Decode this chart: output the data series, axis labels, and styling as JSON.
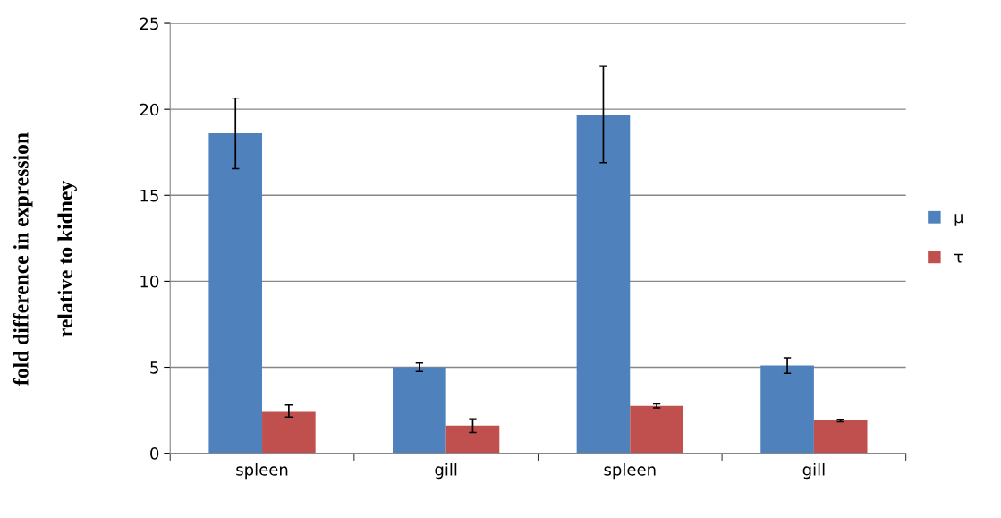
{
  "chart_data": {
    "type": "bar",
    "ylabel": "fold difference in expression\n\nrelative to kidney",
    "categories": [
      "spleen",
      "gill",
      "spleen",
      "gill"
    ],
    "series": [
      {
        "name": "μ",
        "color": "#4f81bd",
        "values": [
          18.6,
          5.0,
          19.7,
          5.1
        ],
        "errors": [
          2.05,
          0.25,
          2.8,
          0.45
        ]
      },
      {
        "name": "τ",
        "color": "#c0504d",
        "values": [
          2.45,
          1.6,
          2.75,
          1.9
        ],
        "errors": [
          0.35,
          0.4,
          0.12,
          0.07
        ]
      }
    ],
    "ylim": [
      0,
      25
    ],
    "yticks": [
      0,
      5,
      10,
      15,
      20,
      25
    ],
    "grid": "y",
    "legend": "right"
  }
}
